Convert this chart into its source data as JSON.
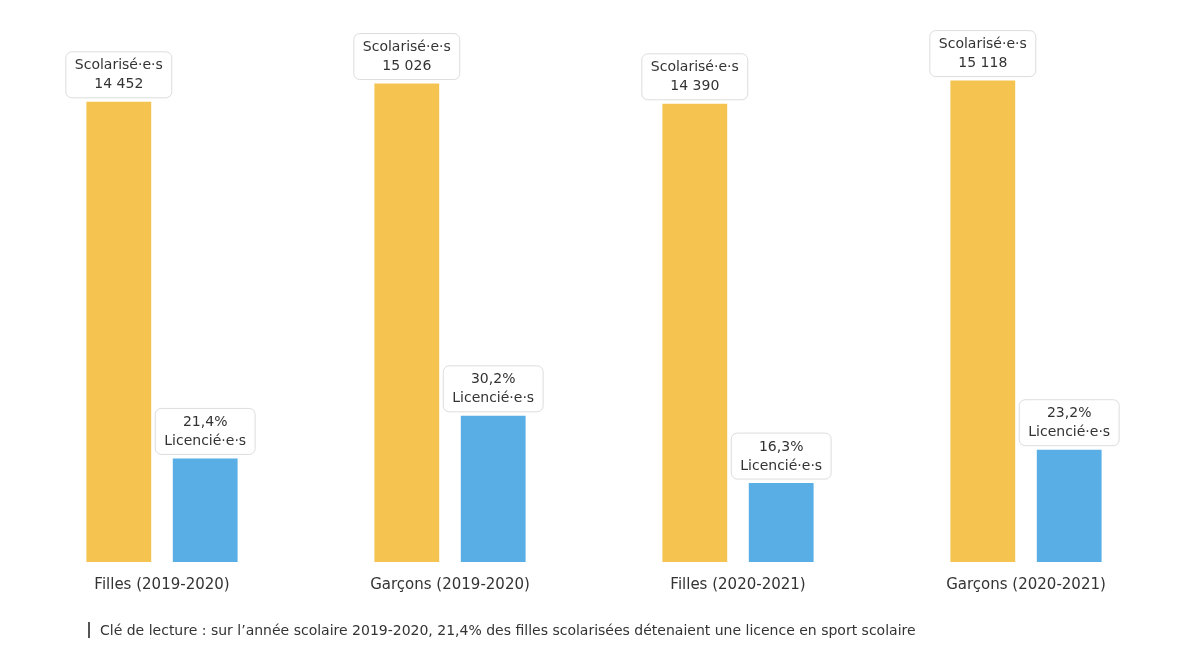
{
  "chart_data": {
    "type": "bar",
    "categories": [
      "Filles (2019-2020)",
      "Garçons (2019-2020)",
      "Filles (2020-2021)",
      "Garçons (2020-2021)"
    ],
    "series": [
      {
        "name": "Scolarisé·e·s",
        "color": "#f5c350",
        "values": [
          14452,
          15026,
          14390,
          15118
        ],
        "value_labels": [
          "14 452",
          "15 026",
          "14 390",
          "15 118"
        ]
      },
      {
        "name": "Licencié·e·s",
        "color": "#5aaee6",
        "axis": "y2",
        "values": [
          21.4,
          30.2,
          16.3,
          23.2
        ],
        "value_labels": [
          "21,4%",
          "30,2%",
          "16,3%",
          "23,2%"
        ]
      }
    ],
    "ylim": [
      0,
      15200
    ],
    "y2lim": [
      0,
      100
    ],
    "tick_labels": "x",
    "grid": false,
    "legend": false,
    "annotations": [
      "Clé de lecture : sur l’année scolaire 2019-2020, 21,4% des filles scolarisées détenaient une licence en sport scolaire"
    ]
  }
}
